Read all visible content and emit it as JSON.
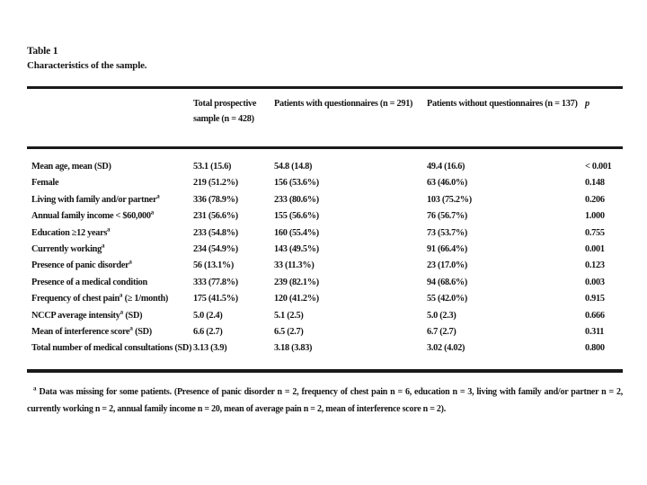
{
  "page": {
    "title": "Table 1",
    "caption": "Characteristics of the sample."
  },
  "colors": {
    "ink": "#161616",
    "rule": "#1a1a1a",
    "background": "#ffffff"
  },
  "table": {
    "headers": {
      "col1": "Total prospective sample (n = 428)",
      "col2": "Patients with questionnaires (n = 291)",
      "col3": "Patients without questionnaires (n = 137)",
      "col4": "p"
    },
    "rows": [
      {
        "label": "Mean age, mean (SD)",
        "sup": "",
        "suffix": "",
        "c1": "53.1 (15.6)",
        "c2": "54.8 (14.8)",
        "c3": "49.4 (16.6)",
        "p": "< 0.001"
      },
      {
        "label": "Female",
        "sup": "",
        "suffix": "",
        "c1": "219 (51.2%)",
        "c2": "156 (53.6%)",
        "c3": "63 (46.0%)",
        "p": "0.148"
      },
      {
        "label": "Living with family and/or partner",
        "sup": "a",
        "suffix": "",
        "c1": "336 (78.9%)",
        "c2": "233 (80.6%)",
        "c3": "103 (75.2%)",
        "p": "0.206"
      },
      {
        "label": "Annual family income < $60,000",
        "sup": "a",
        "suffix": "",
        "c1": "231 (56.6%)",
        "c2": "155 (56.6%)",
        "c3": "76 (56.7%)",
        "p": "1.000"
      },
      {
        "label": "Education ≥12 years",
        "sup": "a",
        "suffix": "",
        "c1": "233 (54.8%)",
        "c2": "160 (55.4%)",
        "c3": "73 (53.7%)",
        "p": "0.755"
      },
      {
        "label": "Currently working",
        "sup": "a",
        "suffix": "",
        "c1": "234 (54.9%)",
        "c2": "143 (49.5%)",
        "c3": "91 (66.4%)",
        "p": "0.001"
      },
      {
        "label": "Presence of panic disorder",
        "sup": "a",
        "suffix": "",
        "c1": "56 (13.1%)",
        "c2": "33 (11.3%)",
        "c3": "23 (17.0%)",
        "p": "0.123"
      },
      {
        "label": "Presence of a medical condition",
        "sup": "",
        "suffix": "",
        "c1": "333 (77.8%)",
        "c2": "239 (82.1%)",
        "c3": "94 (68.6%)",
        "p": "0.003"
      },
      {
        "label": "Frequency of chest pain",
        "sup": "a",
        "suffix": " (≥ 1/month)",
        "c1": "175 (41.5%)",
        "c2": "120 (41.2%)",
        "c3": "55 (42.0%)",
        "p": "0.915"
      },
      {
        "label": "NCCP average intensity",
        "sup": "a",
        "suffix": " (SD)",
        "c1": "5.0 (2.4)",
        "c2": "5.1 (2.5)",
        "c3": "5.0 (2.3)",
        "p": "0.666"
      },
      {
        "label": "Mean of interference score",
        "sup": "a",
        "suffix": " (SD)",
        "c1": "6.6 (2.7)",
        "c2": "6.5 (2.7)",
        "c3": "6.7 (2.7)",
        "p": "0.311"
      },
      {
        "label": "Total number of medical consultations (SD)",
        "sup": "",
        "suffix": "",
        "c1": "3.13 (3.9)",
        "c2": "3.18 (3.83)",
        "c3": "3.02 (4.02)",
        "p": "0.800"
      }
    ]
  },
  "footnote": {
    "marker": "a",
    "text": " Data was missing for some patients. (Presence of panic disorder n = 2, frequency of chest pain n = 6, education n = 3, living with family and/or partner n = 2, currently working n = 2, annual family income n = 20, mean of average pain n = 2, mean of interference score n = 2)."
  }
}
